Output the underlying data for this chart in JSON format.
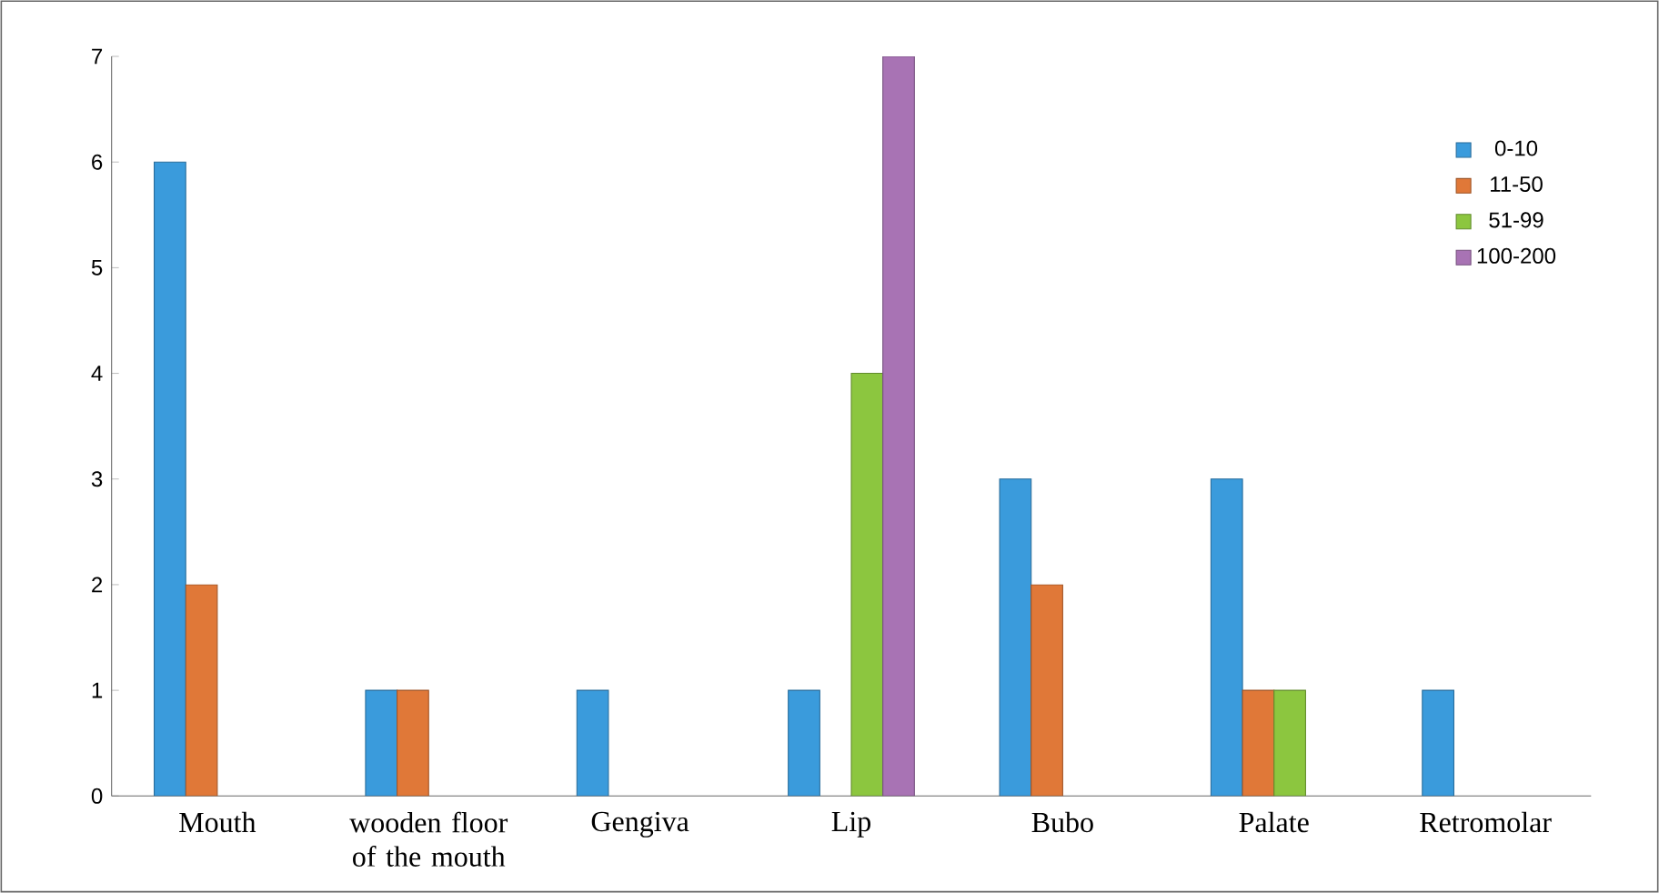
{
  "chart_data": {
    "type": "bar",
    "categories": [
      "Mouth",
      "wooden floor of the mouth",
      "Gengiva",
      "Lip",
      "Bubo",
      "Palate",
      "Retromolar"
    ],
    "series": [
      {
        "name": "0-10",
        "color": "#3a9bdc",
        "values": [
          6,
          1,
          1,
          1,
          3,
          3,
          1
        ]
      },
      {
        "name": "11-50",
        "color": "#e07838",
        "values": [
          2,
          1,
          null,
          null,
          2,
          1,
          null
        ]
      },
      {
        "name": "51-99",
        "color": "#8cc63f",
        "values": [
          null,
          null,
          null,
          4,
          null,
          1,
          null
        ]
      },
      {
        "name": "100-200",
        "color": "#a873b4",
        "values": [
          null,
          null,
          null,
          7,
          null,
          null,
          null
        ]
      }
    ],
    "ylim": [
      0,
      7
    ],
    "yticks": [
      0,
      1,
      2,
      3,
      4,
      5,
      6,
      7
    ],
    "grid": false,
    "legend": "top right"
  }
}
